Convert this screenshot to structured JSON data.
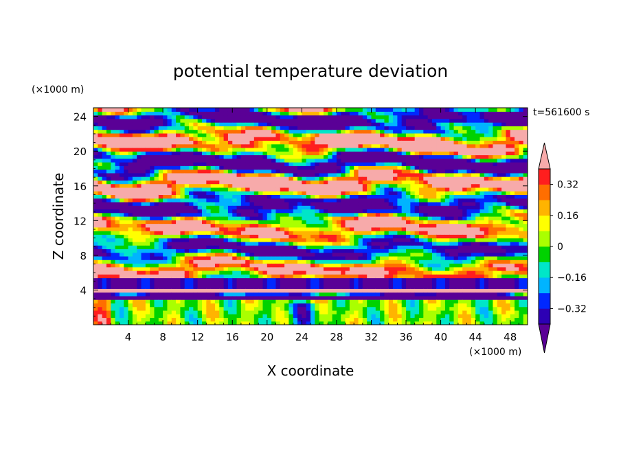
{
  "chart_data": {
    "type": "heatmap",
    "title": "potential temperature deviation",
    "xlabel": "X coordinate",
    "ylabel": "Z coordinate",
    "x_unit": "(×1000 m)",
    "y_unit": "(×1000 m)",
    "time_label": "t=561600 s",
    "xlim": [
      0,
      50
    ],
    "ylim": [
      0,
      25
    ],
    "x_ticks": [
      "4",
      "8",
      "12",
      "16",
      "20",
      "24",
      "28",
      "32",
      "36",
      "40",
      "44",
      "48"
    ],
    "y_ticks": [
      "4",
      "8",
      "12",
      "16",
      "20",
      "24"
    ],
    "colorbar": {
      "levels": [
        -0.4,
        -0.32,
        -0.24,
        -0.16,
        -0.08,
        0,
        0.08,
        0.16,
        0.24,
        0.32,
        0.4
      ],
      "labels": [
        "0.32",
        "0.16",
        "0",
        "−0.16",
        "−0.32"
      ],
      "colors": [
        "#5a0096",
        "#2d00b4",
        "#0028ff",
        "#00b4ff",
        "#00e6c8",
        "#00d200",
        "#aaff00",
        "#ffff00",
        "#ffb400",
        "#ff6e00",
        "#ff1e1e",
        "#f7aaaa"
      ]
    }
  }
}
